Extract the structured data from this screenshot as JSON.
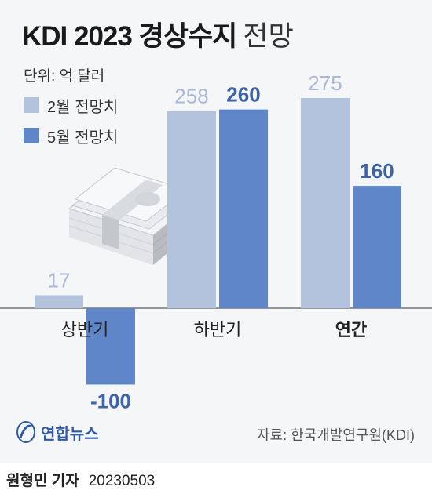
{
  "title": {
    "main": "KDI 2023 경상수지",
    "sub": "전망"
  },
  "unit_label": "단위: 억 달러",
  "legend": [
    {
      "label": "2월 전망치",
      "color": "#b3c3de"
    },
    {
      "label": "5월 전망치",
      "color": "#5f86c8"
    }
  ],
  "source": "자료: 한국개발연구원(KDI)",
  "logo_text": "연합뉴스",
  "byline": {
    "name": "원형민 기자",
    "date": "20230503"
  },
  "chart_data": {
    "type": "bar",
    "categories": [
      "상반기",
      "하반기",
      "연간"
    ],
    "series": [
      {
        "name": "2월 전망치",
        "values": [
          17,
          258,
          275
        ],
        "color": "#b3c3de"
      },
      {
        "name": "5월 전망치",
        "values": [
          -100,
          260,
          160
        ],
        "color": "#5f86c8"
      }
    ],
    "data_labels": [
      [
        "17",
        "258",
        "275"
      ],
      [
        "-100",
        "260",
        "160"
      ]
    ],
    "ylim": [
      -100,
      275
    ],
    "grid": false,
    "legend_position": "top-left",
    "highlight_category": "연간"
  },
  "illustration": "money-stack-icon"
}
